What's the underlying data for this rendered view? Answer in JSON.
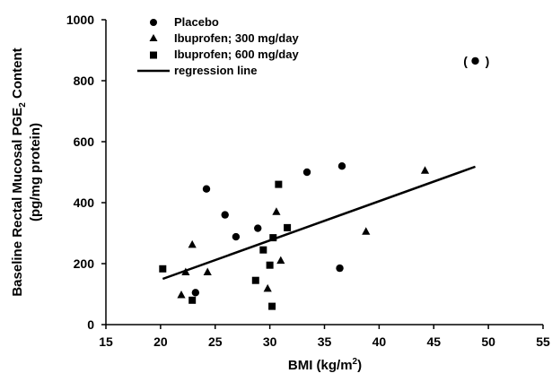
{
  "chart_data": {
    "type": "scatter",
    "title": "",
    "xlabel": "BMI (kg/m",
    "xlabel_sup": "2",
    "xlabel_end": ")",
    "ylabel_line1_pre": "Baseline Rectal Mucosal PGE",
    "ylabel_line1_sub": "2",
    "ylabel_line1_post": " Content",
    "ylabel_line2": "(pg/mg protein)",
    "xlim": [
      15,
      55
    ],
    "ylim": [
      0,
      1000
    ],
    "x_ticks": [
      "15",
      "20",
      "25",
      "30",
      "35",
      "40",
      "45",
      "50",
      "55"
    ],
    "y_ticks": [
      "0",
      "200",
      "400",
      "600",
      "800",
      "1000"
    ],
    "grid": false,
    "legend_position": "top-left",
    "series": [
      {
        "name": "Placebo",
        "marker": "circle",
        "points": [
          {
            "x": 23.2,
            "y": 105
          },
          {
            "x": 24.2,
            "y": 445
          },
          {
            "x": 25.9,
            "y": 360
          },
          {
            "x": 26.9,
            "y": 288
          },
          {
            "x": 28.9,
            "y": 316
          },
          {
            "x": 33.4,
            "y": 500
          },
          {
            "x": 36.4,
            "y": 185
          },
          {
            "x": 36.6,
            "y": 520
          },
          {
            "x": 48.8,
            "y": 865
          }
        ]
      },
      {
        "name": "Ibuprofen; 300 mg/day",
        "marker": "triangle",
        "points": [
          {
            "x": 21.9,
            "y": 97
          },
          {
            "x": 22.3,
            "y": 172
          },
          {
            "x": 22.9,
            "y": 262
          },
          {
            "x": 24.3,
            "y": 172
          },
          {
            "x": 29.8,
            "y": 118
          },
          {
            "x": 30.6,
            "y": 370
          },
          {
            "x": 31.0,
            "y": 210
          },
          {
            "x": 38.8,
            "y": 305
          },
          {
            "x": 44.2,
            "y": 505
          }
        ]
      },
      {
        "name": "Ibuprofen; 600 mg/day",
        "marker": "square",
        "points": [
          {
            "x": 20.2,
            "y": 183
          },
          {
            "x": 22.9,
            "y": 80
          },
          {
            "x": 28.7,
            "y": 145
          },
          {
            "x": 29.4,
            "y": 245
          },
          {
            "x": 30.0,
            "y": 195
          },
          {
            "x": 30.2,
            "y": 60
          },
          {
            "x": 30.3,
            "y": 285
          },
          {
            "x": 30.8,
            "y": 460
          },
          {
            "x": 31.6,
            "y": 318
          }
        ]
      },
      {
        "name": "regression line",
        "marker": "line",
        "points": [
          {
            "x": 20.2,
            "y": 150
          },
          {
            "x": 48.8,
            "y": 518
          }
        ]
      }
    ],
    "annotations": [
      {
        "text": "(",
        "x": 47.9,
        "y": 865
      },
      {
        "text": ")",
        "x": 49.9,
        "y": 865
      }
    ]
  }
}
